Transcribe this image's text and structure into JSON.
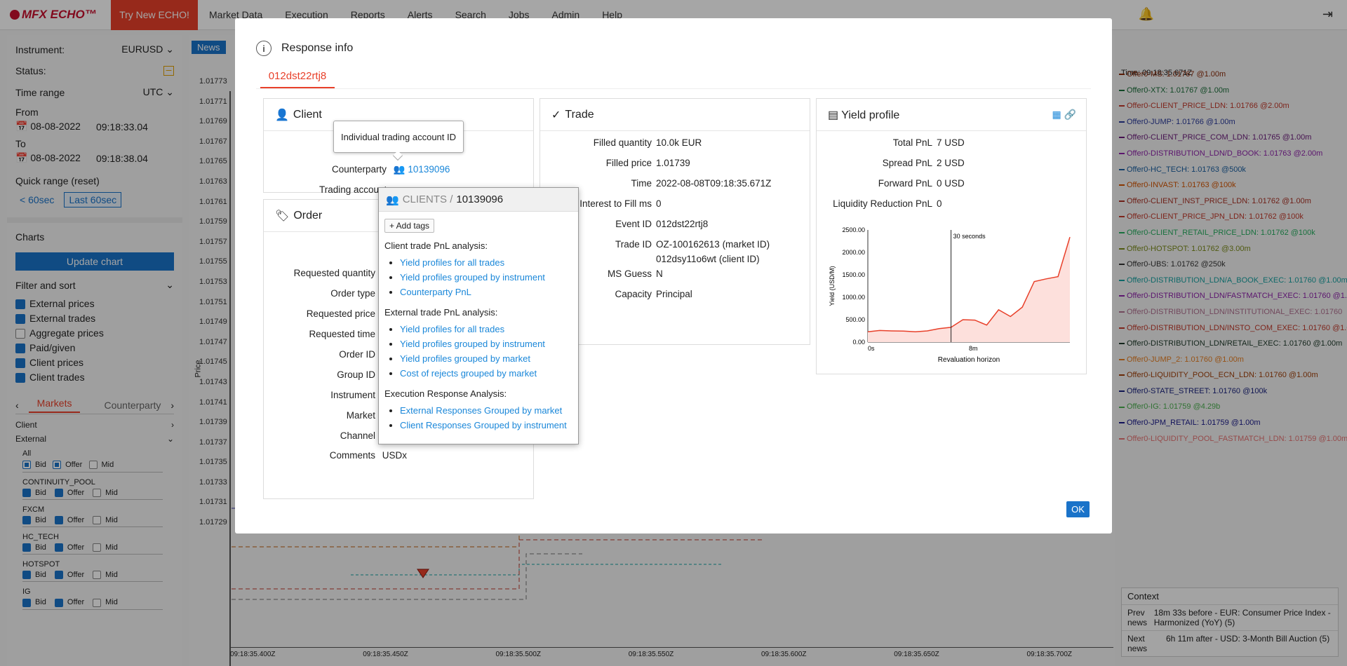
{
  "app": {
    "logo": "MFX ECHO™",
    "try_new": "Try New ECHO!",
    "nav": [
      "Market Data",
      "Execution",
      "Reports",
      "Alerts",
      "Search",
      "Jobs",
      "Admin",
      "Help"
    ]
  },
  "left": {
    "instrument_label": "Instrument:",
    "instrument_value": "EURUSD",
    "status_label": "Status:",
    "time_range_label": "Time range",
    "time_range_value": "UTC",
    "from_label": "From",
    "from_date": "08-08-2022",
    "from_time": "09:18:33.04",
    "to_label": "To",
    "to_date": "08-08-2022",
    "to_time": "09:18:38.04",
    "quick_range": "Quick range (reset)",
    "btn_60sec": "< 60sec",
    "btn_last60": "Last 60sec",
    "charts_label": "Charts",
    "update_chart": "Update chart",
    "filter_label": "Filter and sort",
    "filters": [
      {
        "label": "External prices",
        "on": true
      },
      {
        "label": "External trades",
        "on": true
      },
      {
        "label": "Aggregate prices",
        "on": false
      },
      {
        "label": "Paid/given",
        "on": true
      },
      {
        "label": "Client prices",
        "on": true
      },
      {
        "label": "Client trades",
        "on": true
      }
    ],
    "tab_markets": "Markets",
    "tab_counterparty": "Counterparty",
    "client_label": "Client",
    "external_label": "External",
    "all_label": "All",
    "bid": "Bid",
    "offer": "Offer",
    "mid": "Mid",
    "venues": [
      "CONTINUITY_POOL",
      "FXCM",
      "HC_TECH",
      "HOTSPOT",
      "IG"
    ]
  },
  "chart": {
    "news_tag": "News",
    "ylabel": "Price",
    "yticks": [
      "1.01773",
      "1.01771",
      "1.01769",
      "1.01767",
      "1.01765",
      "1.01763",
      "1.01761",
      "1.01759",
      "1.01757",
      "1.01755",
      "1.01753",
      "1.01751",
      "1.01749",
      "1.01747",
      "1.01745",
      "1.01743",
      "1.01741",
      "1.01739",
      "1.01737",
      "1.01735",
      "1.01733",
      "1.01731",
      "1.01729"
    ],
    "xticks": [
      "09:18:35.400Z",
      "09:18:35.450Z",
      "09:18:35.500Z",
      "09:18:35.550Z",
      "09:18:35.600Z",
      "09:18:35.650Z",
      "09:18:35.700Z"
    ]
  },
  "right": {
    "time": "Time: 09:18:35.671Z",
    "offers": [
      {
        "t": "Offer0-MS: 1.01767 @1.00m",
        "c": "#8a2b0a"
      },
      {
        "t": "Offer0-XTX: 1.01767 @1.00m",
        "c": "#1b6e3a"
      },
      {
        "t": "Offer0-CLIENT_PRICE_LDN: 1.01766 @2.00m",
        "c": "#c0392b"
      },
      {
        "t": "Offer0-JUMP: 1.01766 @1.00m",
        "c": "#2a3a9a"
      },
      {
        "t": "Offer0-CLIENT_PRICE_COM_LDN: 1.01765 @1.00m",
        "c": "#6a1b7a"
      },
      {
        "t": "Offer0-DISTRIBUTION_LDN/D_BOOK: 1.01763 @2.00m",
        "c": "#8e24aa"
      },
      {
        "t": "Offer0-HC_TECH: 1.01763 @500k",
        "c": "#1a5fa0"
      },
      {
        "t": "Offer0-INVAST: 1.01763 @100k",
        "c": "#d35400"
      },
      {
        "t": "Offer0-CLIENT_INST_PRICE_LDN: 1.01762 @1.00m",
        "c": "#a93226"
      },
      {
        "t": "Offer0-CLIENT_PRICE_JPN_LDN: 1.01762 @100k",
        "c": "#c0392b"
      },
      {
        "t": "Offer0-CLIENT_RETAIL_PRICE_LDN: 1.01762 @100k",
        "c": "#27ae60"
      },
      {
        "t": "Offer0-HOTSPOT: 1.01762 @3.00m",
        "c": "#7a8a1a"
      },
      {
        "t": "Offer0-UBS: 1.01762 @250k",
        "c": "#333333"
      },
      {
        "t": "Offer0-DISTRIBUTION_LDN/A_BOOK_EXEC: 1.01760 @1.00m",
        "c": "#16a0a0"
      },
      {
        "t": "Offer0-DISTRIBUTION_LDN/FASTMATCH_EXEC: 1.01760 @1.0",
        "c": "#8e24aa"
      },
      {
        "t": "Offer0-DISTRIBUTION_LDN/INSTITUTIONAL_EXEC: 1.01760",
        "c": "#b07090"
      },
      {
        "t": "Offer0-DISTRIBUTION_LDN/INSTO_COM_EXEC: 1.01760 @1.0",
        "c": "#c0392b"
      },
      {
        "t": "Offer0-DISTRIBUTION_LDN/RETAIL_EXEC: 1.01760 @1.00m",
        "c": "#1e3a2a"
      },
      {
        "t": "Offer0-JUMP_2: 1.01760 @1.00m",
        "c": "#e67e22"
      },
      {
        "t": "Offer0-LIQUIDITY_POOL_ECN_LDN: 1.01760 @1.00m",
        "c": "#a0400a"
      },
      {
        "t": "Offer0-STATE_STREET: 1.01760 @100k",
        "c": "#1a237e"
      },
      {
        "t": "Offer0-IG: 1.01759 @4.29b",
        "c": "#4caf50"
      },
      {
        "t": "Offer0-JPM_RETAIL: 1.01759 @1.00m",
        "c": "#1a1a8a"
      },
      {
        "t": "Offer0-LIQUIDITY_POOL_FASTMATCH_LDN: 1.01759 @1.00m",
        "c": "#e57373"
      }
    ],
    "context_label": "Context",
    "prev_label": "Prev news",
    "prev_text": "18m 33s before - EUR: Consumer Price Index - Harmonized (YoY) (5)",
    "next_label": "Next news",
    "next_text": "6h 11m after - USD: 3-Month Bill Auction (5)"
  },
  "modal": {
    "title": "Response info",
    "tab": "012dst22rtj8",
    "client_title": "Client",
    "counterparty_label": "Counterparty",
    "counterparty_value": "10139096",
    "trading_account_label": "Trading account",
    "tooltip": "Individual trading account ID",
    "order_title": "Order",
    "order_rows": [
      "Requested quantity",
      "Order type",
      "Requested price",
      "Requested time",
      "Order ID",
      "Group ID",
      "Instrument",
      "Market",
      "Channel"
    ],
    "comments_label": "Comments",
    "comments_value": "USDx",
    "trade_title": "Trade",
    "trade_rows": [
      {
        "k": "Filled quantity",
        "v": "10.0k EUR"
      },
      {
        "k": "Filled price",
        "v": "1.01739"
      },
      {
        "k": "Time",
        "v": "2022-08-08T09:18:35.671Z"
      },
      {
        "k": "Interest to Fill ms",
        "v": "0"
      },
      {
        "k": "Event ID",
        "v": "012dst22rtj8"
      },
      {
        "k": "Trade ID",
        "v": "OZ-100162613 (market ID)"
      },
      {
        "k": "",
        "v": "012dsy11o6wt (client ID)"
      },
      {
        "k": "MS Guess",
        "v": "N"
      },
      {
        "k": "Capacity",
        "v": "Principal"
      }
    ],
    "yield_title": "Yield profile",
    "yield_rows": [
      {
        "k": "Total PnL",
        "v": "7 USD"
      },
      {
        "k": "Spread PnL",
        "v": "2 USD"
      },
      {
        "k": "Forward PnL",
        "v": "0 USD"
      },
      {
        "k": "Liquidity Reduction PnL",
        "v": "0"
      }
    ],
    "ok": "OK"
  },
  "popup": {
    "crumb": "CLIENTS /",
    "id": "10139096",
    "add_tags": "+ Add tags",
    "sections": [
      {
        "title": "Client trade PnL analysis:",
        "links": [
          "Yield profiles for all trades",
          "Yield profiles grouped by instrument",
          "Counterparty PnL"
        ]
      },
      {
        "title": "External trade PnL analysis:",
        "links": [
          "Yield profiles for all trades",
          "Yield profiles grouped by instrument",
          "Yield profiles grouped by market",
          "Cost of rejects grouped by market"
        ]
      },
      {
        "title": "Execution Response Analysis:",
        "links": [
          "External Responses Grouped by market",
          "Client Responses Grouped by instrument"
        ]
      }
    ]
  },
  "chart_data": {
    "type": "area",
    "ylabel": "Yield (USD/M)",
    "xlabel": "Revaluation horizon",
    "x_ticks": [
      "0s",
      "8m"
    ],
    "y_ticks": [
      "0.00",
      "500.00",
      "1000.00",
      "1500.00",
      "2000.00",
      "2500.00"
    ],
    "ylim": [
      0,
      2500
    ],
    "annotation": "30 seconds",
    "values": [
      230,
      260,
      250,
      245,
      230,
      250,
      300,
      330,
      500,
      490,
      380,
      720,
      570,
      780,
      1350,
      1410,
      1460,
      2340
    ],
    "color": "#e8402a",
    "grid": false
  }
}
